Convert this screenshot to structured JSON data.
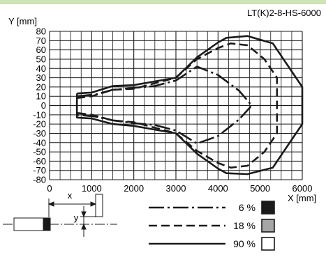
{
  "chart_data": {
    "type": "line",
    "model": "LT(K)2-8-HS-6000",
    "ylabel": "Y [mm]",
    "xlabel": "X [mm]",
    "xlim": [
      0,
      6000
    ],
    "ylim": [
      -80,
      80
    ],
    "xticks": [
      0,
      1000,
      2000,
      3000,
      4000,
      5000,
      6000
    ],
    "yticks": [
      80,
      70,
      60,
      50,
      40,
      30,
      20,
      10,
      0,
      -10,
      -20,
      -30,
      -40,
      -50,
      -60,
      -70,
      -80
    ],
    "grid": true,
    "diagram_labels": {
      "x": "x",
      "y": "y"
    },
    "series": [
      {
        "name": "6 %",
        "color": "#1a1a1a",
        "style": "dash-dot",
        "x": [
          650,
          1100,
          1500,
          2000,
          2500,
          3000,
          3500,
          4000,
          4500,
          4800
        ],
        "upper": [
          10,
          12,
          17,
          19,
          21,
          27,
          42,
          33,
          16,
          0
        ],
        "lower": [
          -10,
          -12,
          -16,
          -19,
          -21,
          -27,
          -41,
          -33,
          -15,
          0
        ]
      },
      {
        "name": "18 %",
        "color": "#a6a6a6",
        "style": "dash",
        "x": [
          650,
          1000,
          1500,
          2000,
          2500,
          3000,
          3500,
          4000,
          4300,
          4700,
          5100,
          5400
        ],
        "upper": [
          8,
          10,
          17,
          18,
          24,
          30,
          50,
          62,
          67,
          65,
          50,
          30
        ],
        "lower": [
          -8,
          -10,
          -16,
          -18,
          -24,
          -30,
          -49,
          -62,
          -67,
          -65,
          -50,
          -30
        ]
      },
      {
        "name": "90 %",
        "color": "#ffffff",
        "style": "solid",
        "x": [
          650,
          1000,
          1500,
          2000,
          2500,
          3000,
          3500,
          4000,
          4200,
          4700,
          5300,
          6000
        ],
        "upper": [
          13,
          14,
          21,
          22,
          26,
          30,
          52,
          68,
          73,
          75,
          67,
          20
        ],
        "lower": [
          -13,
          -14,
          -20,
          -22,
          -26,
          -30,
          -52,
          -68,
          -73,
          -74,
          -67,
          -20
        ]
      }
    ]
  }
}
